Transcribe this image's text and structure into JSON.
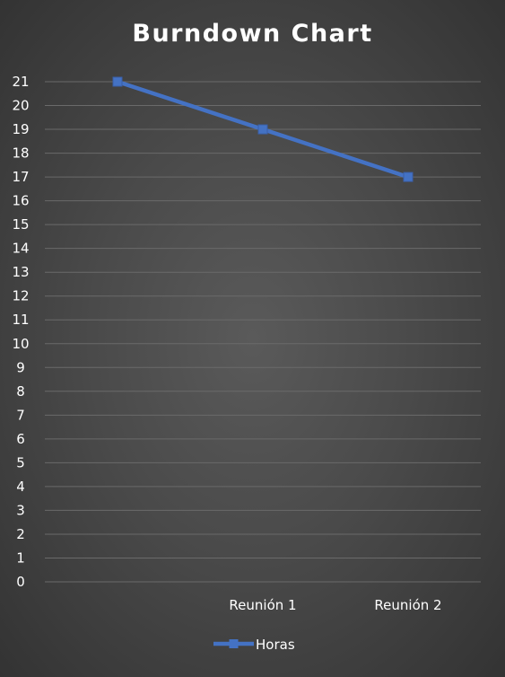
{
  "chart_data": {
    "type": "line",
    "title": "Burndown Chart",
    "categories": [
      "",
      "Reunión 1",
      "Reunión 2"
    ],
    "series": [
      {
        "name": "Horas",
        "values": [
          21,
          19,
          17
        ],
        "color": "#4472c4"
      }
    ],
    "ylim": [
      0,
      21
    ],
    "yticks": [
      0,
      1,
      2,
      3,
      4,
      5,
      6,
      7,
      8,
      9,
      10,
      11,
      12,
      13,
      14,
      15,
      16,
      17,
      18,
      19,
      20,
      21
    ],
    "grid": true,
    "legend_position": "bottom",
    "marker": "square"
  },
  "colors": {
    "background": "#444444",
    "gridline": "#6a6a6a",
    "text": "#ffffff",
    "series": "#4472c4"
  }
}
